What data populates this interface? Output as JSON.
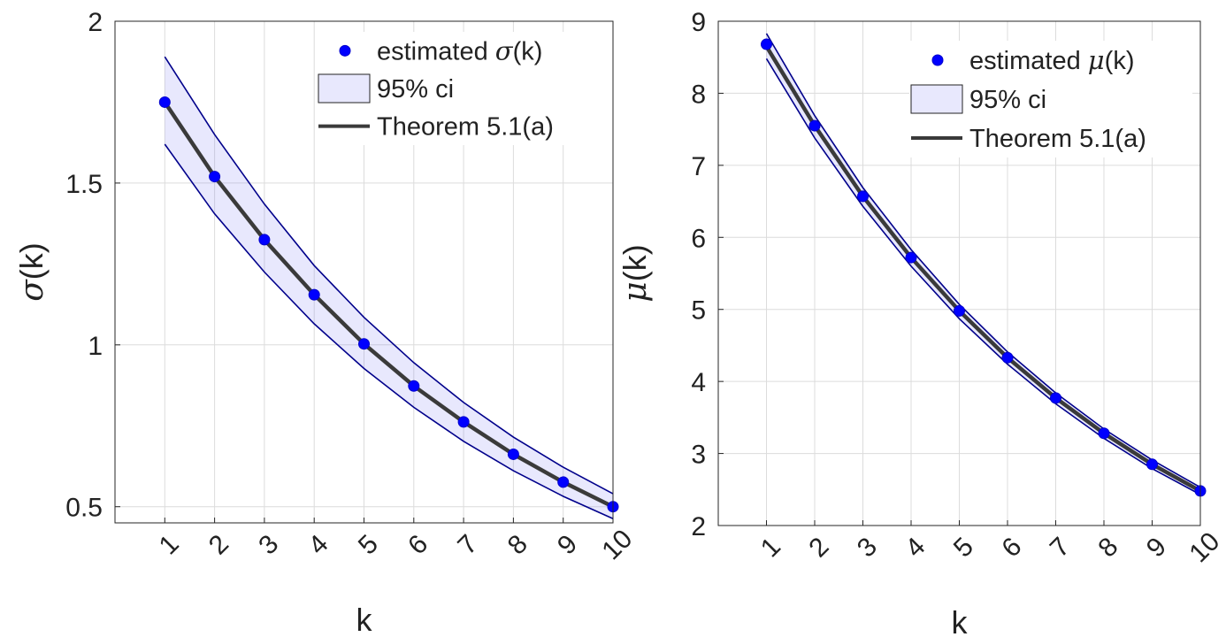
{
  "chart_data": [
    {
      "type": "line",
      "title": "",
      "xlabel": "k",
      "ylabel_symbol": "σ",
      "ylabel_suffix": "(k)",
      "xlim": [
        0,
        10
      ],
      "ylim": [
        0.45,
        2
      ],
      "xticks": [
        1,
        2,
        3,
        4,
        5,
        6,
        7,
        8,
        9,
        10
      ],
      "xtick_labels": [
        "1",
        "2",
        "3",
        "4",
        "5",
        "6",
        "7",
        "8",
        "9",
        "10"
      ],
      "yticks": [
        0.5,
        1,
        1.5,
        2
      ],
      "ytick_labels": [
        "0.5",
        "1",
        "1.5",
        "2"
      ],
      "grid": true,
      "legend_position": "top-right",
      "legend": {
        "estimated_prefix": "estimated ",
        "estimated_symbol": "σ",
        "estimated_suffix": "(k)",
        "ci": "95% ci",
        "theory": "Theorem 5.1(a)"
      },
      "x": [
        1,
        2,
        3,
        4,
        5,
        6,
        7,
        8,
        9,
        10
      ],
      "estimated": [
        1.75,
        1.52,
        1.325,
        1.155,
        1.003,
        0.873,
        0.762,
        0.662,
        0.576,
        0.5
      ],
      "theory": [
        1.75,
        1.52,
        1.325,
        1.155,
        1.003,
        0.873,
        0.762,
        0.662,
        0.576,
        0.5
      ],
      "ci_upper": [
        1.89,
        1.65,
        1.435,
        1.245,
        1.085,
        0.945,
        0.822,
        0.715,
        0.622,
        0.54
      ],
      "ci_lower": [
        1.62,
        1.405,
        1.225,
        1.065,
        0.927,
        0.807,
        0.702,
        0.611,
        0.532,
        0.463
      ]
    },
    {
      "type": "line",
      "title": "",
      "xlabel": "k",
      "ylabel_symbol": "μ",
      "ylabel_suffix": "(k)",
      "xlim": [
        0,
        10
      ],
      "ylim": [
        2,
        9
      ],
      "xticks": [
        1,
        2,
        3,
        4,
        5,
        6,
        7,
        8,
        9,
        10
      ],
      "xtick_labels": [
        "1",
        "2",
        "3",
        "4",
        "5",
        "6",
        "7",
        "8",
        "9",
        "10"
      ],
      "yticks": [
        2,
        3,
        4,
        5,
        6,
        7,
        8,
        9
      ],
      "ytick_labels": [
        "2",
        "3",
        "4",
        "5",
        "6",
        "7",
        "8",
        "9"
      ],
      "grid": true,
      "legend_position": "top-right",
      "legend": {
        "estimated_prefix": "estimated ",
        "estimated_symbol": "μ",
        "estimated_suffix": "(k)",
        "ci": "95% ci",
        "theory": "Theorem 5.1(a)"
      },
      "x": [
        1,
        2,
        3,
        4,
        5,
        6,
        7,
        8,
        9,
        10
      ],
      "estimated": [
        8.68,
        7.55,
        6.57,
        5.72,
        4.98,
        4.33,
        3.77,
        3.28,
        2.85,
        2.48
      ],
      "theory": [
        8.65,
        7.55,
        6.57,
        5.72,
        4.98,
        4.33,
        3.77,
        3.28,
        2.85,
        2.48
      ],
      "ci_upper": [
        8.83,
        7.69,
        6.69,
        5.83,
        5.07,
        4.41,
        3.84,
        3.34,
        2.91,
        2.53
      ],
      "ci_lower": [
        8.48,
        7.38,
        6.43,
        5.6,
        4.87,
        4.24,
        3.69,
        3.21,
        2.79,
        2.43
      ]
    }
  ]
}
